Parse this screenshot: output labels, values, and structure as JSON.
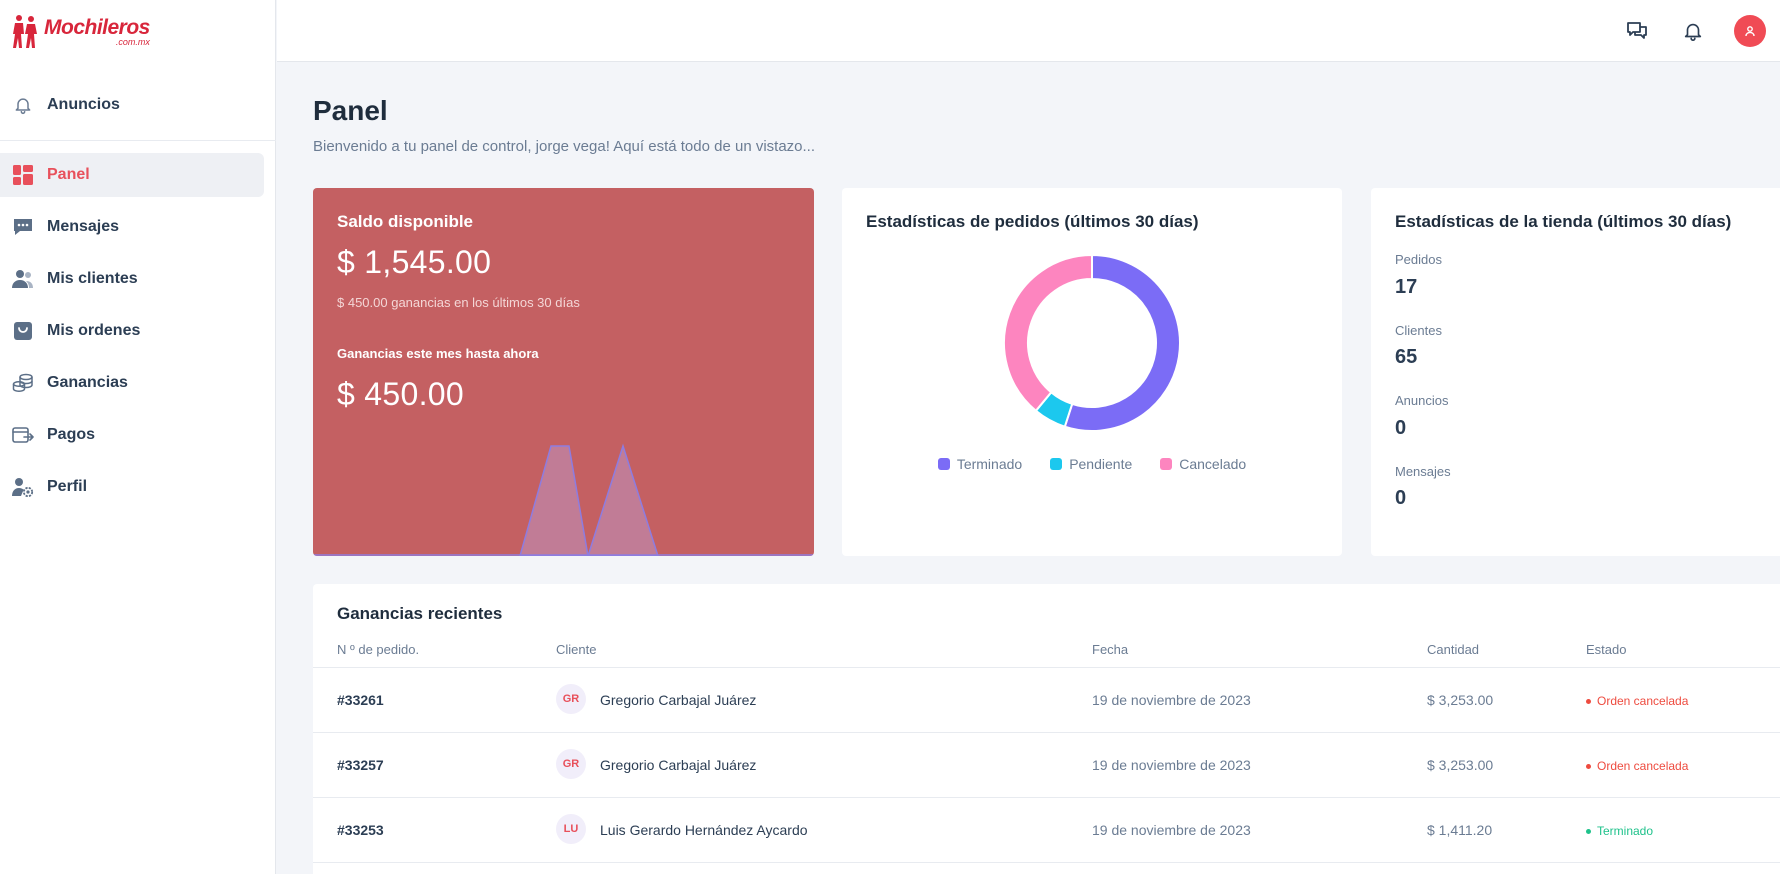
{
  "brand": {
    "name": "Mochileros",
    "sub": ".com.mx"
  },
  "sidebar": {
    "items": [
      {
        "label": "Anuncios",
        "icon": "bell-icon"
      },
      {
        "label": "Panel",
        "icon": "dashboard-icon",
        "active": true
      },
      {
        "label": "Mensajes",
        "icon": "chat-icon"
      },
      {
        "label": "Mis clientes",
        "icon": "users-icon"
      },
      {
        "label": "Mis ordenes",
        "icon": "bag-icon"
      },
      {
        "label": "Ganancias",
        "icon": "coins-icon"
      },
      {
        "label": "Pagos",
        "icon": "payment-icon"
      },
      {
        "label": "Perfil",
        "icon": "user-gear-icon"
      }
    ]
  },
  "header": {
    "title": "Panel",
    "subtitle": "Bienvenido a tu panel de control, jorge vega! Aquí está todo de un vistazo..."
  },
  "balance": {
    "title": "Saldo disponible",
    "amount": "$ 1,545.00",
    "earnings_note": "$ 450.00 ganancias en los últimos 30 días",
    "month_label": "Ganancias este mes hasta ahora",
    "month_amount": "$ 450.00"
  },
  "orders_stats": {
    "title": "Estadísticas de pedidos (últimos 30 días)",
    "legend": [
      {
        "label": "Terminado",
        "color": "#7b6cf6"
      },
      {
        "label": "Pendiente",
        "color": "#1cc8ee"
      },
      {
        "label": "Cancelado",
        "color": "#fd85bf"
      }
    ]
  },
  "chart_data": {
    "type": "pie",
    "categories": [
      "Terminado",
      "Pendiente",
      "Cancelado"
    ],
    "values": [
      55,
      6,
      39
    ],
    "colors": [
      "#7b6cf6",
      "#1cc8ee",
      "#fd85bf"
    ],
    "title": "Estadísticas de pedidos (últimos 30 días)",
    "legend": "bottom"
  },
  "store_stats": {
    "title": "Estadísticas de la tienda (últimos 30 días)",
    "items": [
      {
        "label": "Pedidos",
        "value": "17"
      },
      {
        "label": "Clientes",
        "value": "65"
      },
      {
        "label": "Anuncios",
        "value": "0"
      },
      {
        "label": "Mensajes",
        "value": "0"
      }
    ]
  },
  "recent": {
    "title": "Ganancias recientes",
    "columns": [
      "N º de pedido.",
      "Cliente",
      "Fecha",
      "Cantidad",
      "Estado"
    ],
    "rows": [
      {
        "order": "#33261",
        "initials": "GR",
        "client": "Gregorio Carbajal Juárez",
        "date": "19 de noviembre de 2023",
        "amount": "$ 3,253.00",
        "status": "Orden cancelada",
        "status_color": "#ee4b3f"
      },
      {
        "order": "#33257",
        "initials": "GR",
        "client": "Gregorio Carbajal Juárez",
        "date": "19 de noviembre de 2023",
        "amount": "$ 3,253.00",
        "status": "Orden cancelada",
        "status_color": "#ee4b3f"
      },
      {
        "order": "#33253",
        "initials": "LU",
        "client": "Luis Gerardo Hernández Aycardo",
        "date": "19 de noviembre de 2023",
        "amount": "$ 1,411.20",
        "status": "Terminado",
        "status_color": "#1fc28b"
      }
    ]
  }
}
